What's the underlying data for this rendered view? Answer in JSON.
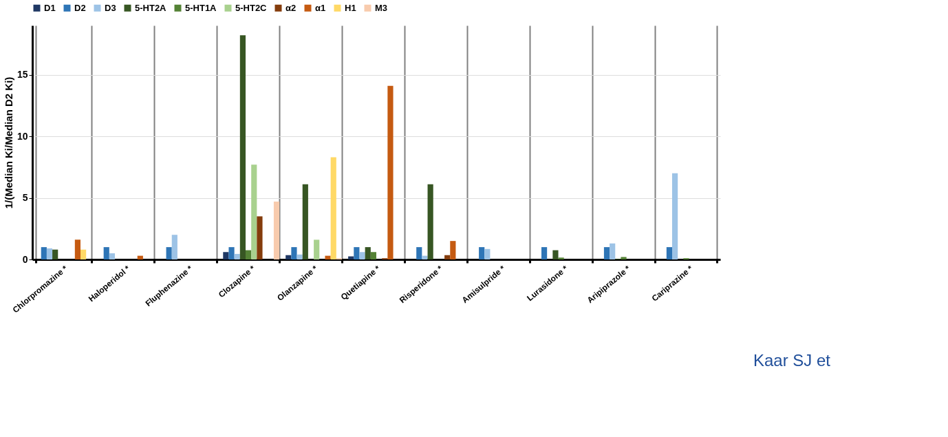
{
  "chart_data": {
    "type": "bar",
    "ylabel": "1/(Median Ki/Median D2 Ki)",
    "categories": [
      "Chlorpromazine *",
      "Haloperidol *",
      "Fluphenazine *",
      "Clozapine *",
      "Olanzapine *",
      "Quetiapine *",
      "Risperidone *",
      "Amisulpride *",
      "Lurasidone *",
      "Aripiprazole *",
      "Cariprazine *"
    ],
    "series": [
      {
        "name": "D1",
        "color": "#1f3864",
        "values": [
          0,
          0,
          0,
          0.6,
          0.35,
          0.25,
          0,
          0,
          0,
          0,
          0
        ]
      },
      {
        "name": "D2",
        "color": "#2e75b6",
        "values": [
          1,
          1,
          1,
          1,
          1,
          1,
          1,
          1,
          1,
          1,
          1
        ]
      },
      {
        "name": "D3",
        "color": "#9dc3e6",
        "values": [
          0.9,
          0.5,
          2.0,
          0.45,
          0.4,
          0.6,
          0.3,
          0.85,
          0,
          1.3,
          7.0
        ]
      },
      {
        "name": "5-HT2A",
        "color": "#375623",
        "values": [
          0.8,
          0,
          0,
          18.2,
          6.1,
          1.0,
          6.1,
          0,
          0.75,
          0.05,
          0
        ]
      },
      {
        "name": "5-HT1A",
        "color": "#548235",
        "values": [
          0,
          0,
          0,
          0.75,
          0,
          0.6,
          0,
          0,
          0.15,
          0.2,
          0.1
        ]
      },
      {
        "name": "5-HT2C",
        "color": "#a9d18e",
        "values": [
          0,
          0,
          0,
          7.7,
          1.6,
          0,
          0,
          0,
          0,
          0,
          0
        ]
      },
      {
        "name": "α2",
        "color": "#843c0c",
        "values": [
          0,
          0,
          0,
          3.5,
          0,
          0.1,
          0.35,
          0,
          0,
          0,
          0
        ]
      },
      {
        "name": "α1",
        "color": "#c55a11",
        "values": [
          1.6,
          0.3,
          0,
          null,
          0.3,
          14.1,
          1.5,
          0,
          0,
          0,
          0
        ]
      },
      {
        "name": "H1",
        "color": "#ffd966",
        "values": [
          0.8,
          0,
          0,
          null,
          8.3,
          null,
          0,
          0,
          0,
          0,
          0
        ]
      },
      {
        "name": "M3",
        "color": "#f8cbad",
        "values": [
          0,
          0,
          0,
          4.7,
          0.1,
          0,
          0,
          0,
          0,
          0,
          0
        ]
      }
    ],
    "ylim": [
      0,
      19
    ],
    "yticks": [
      0,
      5,
      10,
      15
    ],
    "grid": true,
    "legend": "top",
    "annotations": [
      "Kaar SJ et"
    ]
  }
}
